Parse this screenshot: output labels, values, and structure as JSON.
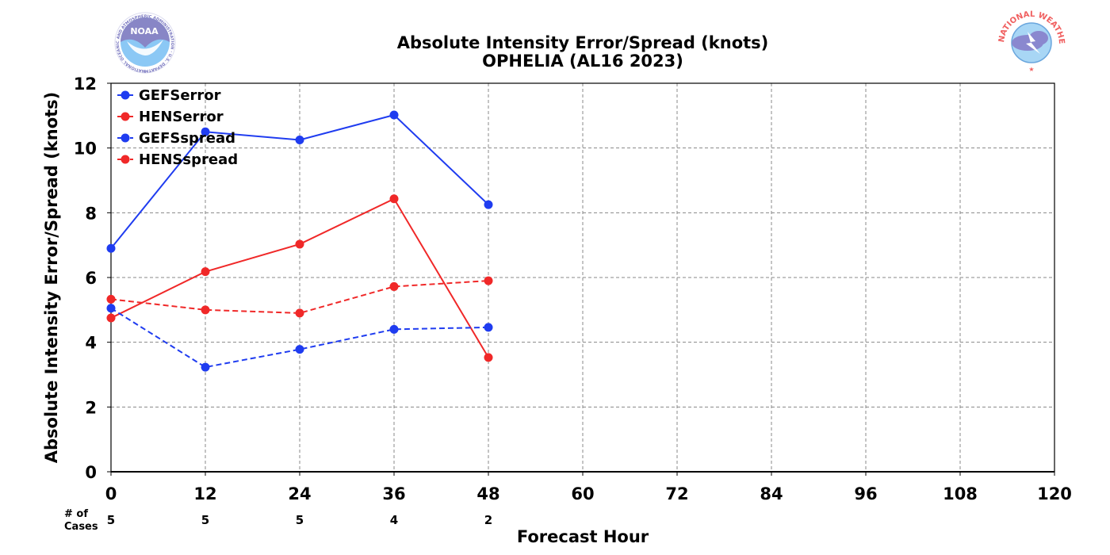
{
  "chart_data": {
    "type": "line",
    "title": "Absolute Intensity Error/Spread (knots)",
    "subtitle": "OPHELIA (AL16 2023)",
    "xlabel": "Forecast Hour",
    "ylabel": "Absolute Intensity Error/Spread (knots)",
    "xlim": [
      0,
      120
    ],
    "ylim": [
      0,
      12
    ],
    "xticks": [
      "0",
      "12",
      "24",
      "36",
      "48",
      "60",
      "72",
      "84",
      "96",
      "108",
      "120"
    ],
    "yticks": [
      "0",
      "2",
      "4",
      "6",
      "8",
      "10",
      "12"
    ],
    "grid": true,
    "legend_position": "top-left",
    "x": [
      0,
      12,
      24,
      36,
      48
    ],
    "series": [
      {
        "name": "GEFSerror",
        "values": [
          6.9,
          10.5,
          10.25,
          11.02,
          8.25
        ],
        "color": "#1f3cf0",
        "dash": "solid"
      },
      {
        "name": "HENSerror",
        "values": [
          4.75,
          6.18,
          7.03,
          8.43,
          3.53
        ],
        "color": "#f02828",
        "dash": "solid"
      },
      {
        "name": "GEFSspread",
        "values": [
          5.05,
          3.23,
          3.78,
          4.4,
          4.46
        ],
        "color": "#1f3cf0",
        "dash": "dashed"
      },
      {
        "name": "HENSspread",
        "values": [
          5.33,
          5.0,
          4.9,
          5.72,
          5.9
        ],
        "color": "#f02828",
        "dash": "dashed"
      }
    ],
    "cases_label": "# of\nCases",
    "cases": [
      "5",
      "5",
      "5",
      "4",
      "2"
    ]
  },
  "logos": {
    "left": {
      "name": "noaa-logo",
      "text": "NOAA",
      "ring_text": "NATIONAL OCEANIC AND ATMOSPHERIC ADMINISTRATION · U.S. DEPARTMENT OF COMMERCE"
    },
    "right": {
      "name": "national-weather-service-logo",
      "ring_text": "NATIONAL WEATHER SERVICE"
    }
  }
}
